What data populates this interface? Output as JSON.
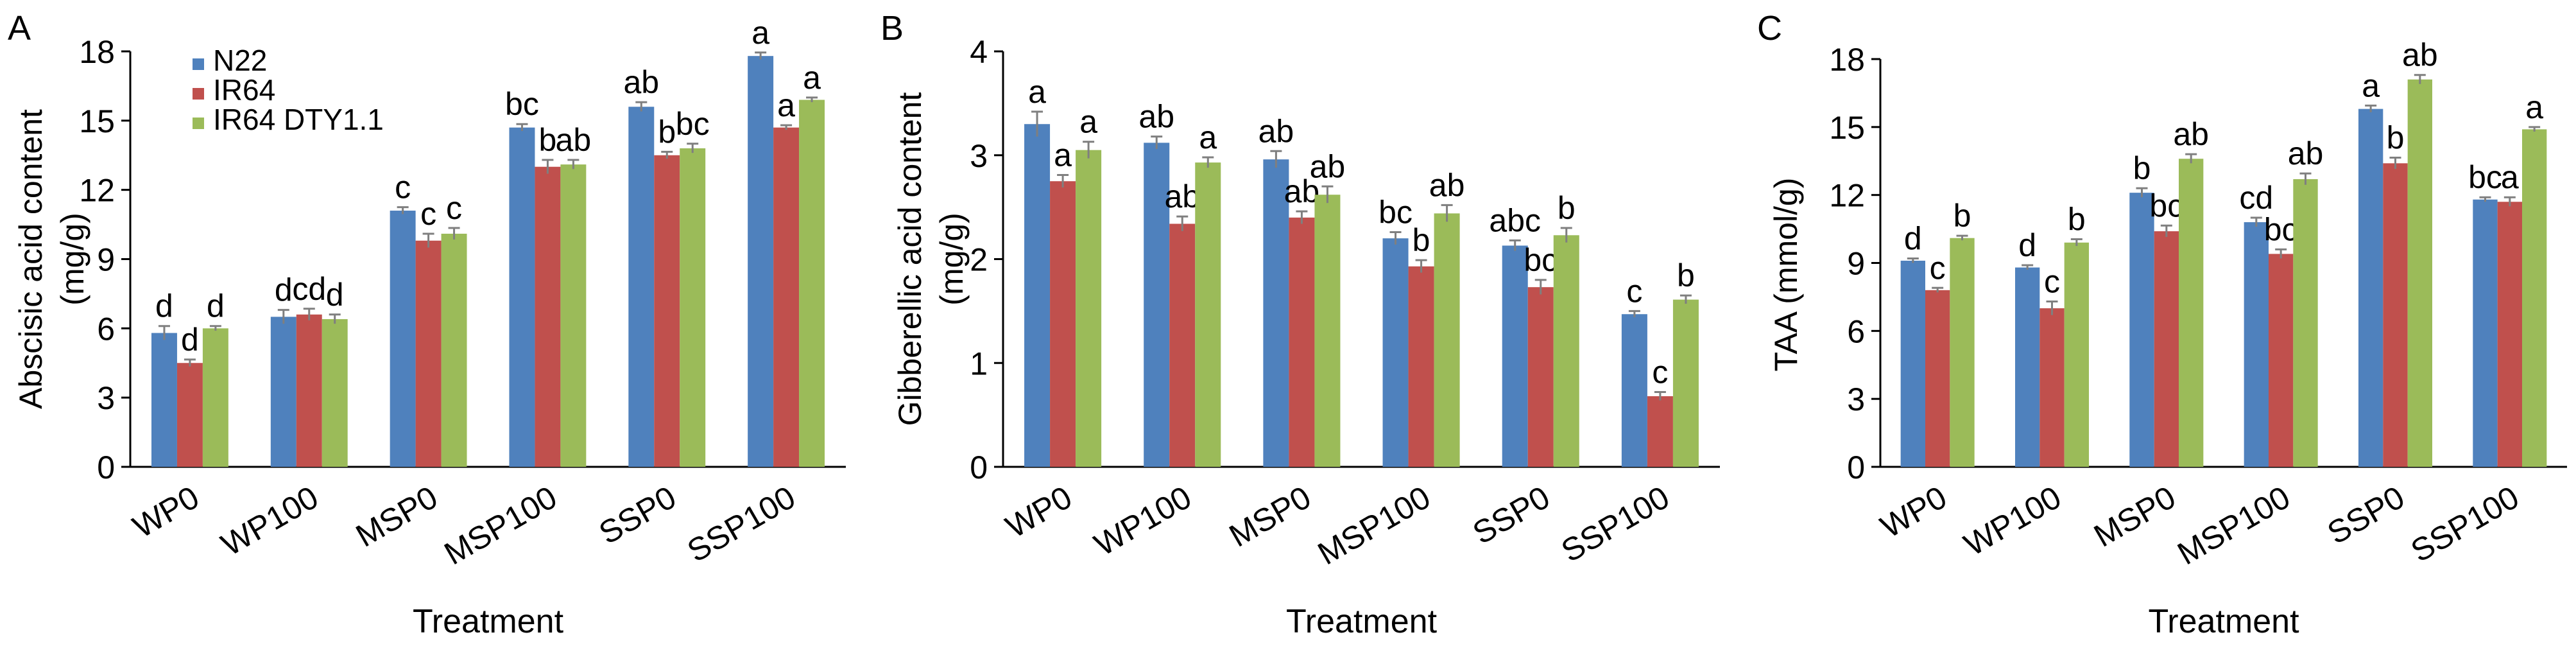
{
  "colors": {
    "N22": "#4f81bd",
    "IR64": "#c0504d",
    "IR64 DTY1.1": "#9bbb59"
  },
  "chart_data": [
    {
      "panel": "A",
      "type": "bar",
      "xlabel": "Treatment",
      "ylabel": "Abscisic acid content (mg/g)",
      "ylim": [
        0,
        18
      ],
      "yticks": [
        0,
        3,
        6,
        9,
        12,
        15,
        18
      ],
      "categories": [
        "WP0",
        "WP100",
        "MSP0",
        "MSP100",
        "SSP0",
        "SSP100"
      ],
      "legend_position": "top-left",
      "series": [
        {
          "name": "N22",
          "values": [
            5.8,
            6.5,
            11.1,
            14.7,
            15.6,
            17.8
          ],
          "errors": [
            0.3,
            0.3,
            0.15,
            0.15,
            0.2,
            0.15
          ],
          "letters": [
            "d",
            "d",
            "c",
            "bc",
            "ab",
            "a"
          ]
        },
        {
          "name": "IR64",
          "values": [
            4.5,
            6.6,
            9.8,
            13.0,
            13.5,
            14.7
          ],
          "errors": [
            0.15,
            0.25,
            0.3,
            0.3,
            0.15,
            0.1
          ],
          "letters": [
            "d",
            "cd",
            "c",
            "b",
            "b",
            "a"
          ]
        },
        {
          "name": "IR64 DTY1.1",
          "values": [
            6.0,
            6.4,
            10.1,
            13.1,
            13.8,
            15.9
          ],
          "errors": [
            0.1,
            0.2,
            0.25,
            0.2,
            0.2,
            0.1
          ],
          "letters": [
            "d",
            "d",
            "c",
            "ab",
            "bc",
            "a"
          ]
        }
      ]
    },
    {
      "panel": "B",
      "type": "bar",
      "xlabel": "Treatment",
      "ylabel": "Gibberellic acid content (mg/g)",
      "ylim": [
        0,
        4
      ],
      "yticks": [
        0,
        1,
        2,
        3,
        4
      ],
      "categories": [
        "WP0",
        "WP100",
        "MSP0",
        "MSP100",
        "SSP0",
        "SSP100"
      ],
      "series": [
        {
          "name": "N22",
          "values": [
            3.3,
            3.12,
            2.96,
            2.2,
            2.13,
            1.47
          ],
          "errors": [
            0.12,
            0.06,
            0.08,
            0.06,
            0.05,
            0.03
          ],
          "letters": [
            "a",
            "ab",
            "ab",
            "bc",
            "abc",
            "c"
          ]
        },
        {
          "name": "IR64",
          "values": [
            2.75,
            2.34,
            2.4,
            1.93,
            1.73,
            0.68
          ],
          "errors": [
            0.06,
            0.07,
            0.06,
            0.06,
            0.07,
            0.04
          ],
          "letters": [
            "a",
            "ab",
            "ab",
            "b",
            "bc",
            "c"
          ]
        },
        {
          "name": "IR64 DTY1.1",
          "values": [
            3.05,
            2.93,
            2.62,
            2.44,
            2.23,
            1.61
          ],
          "errors": [
            0.08,
            0.05,
            0.08,
            0.08,
            0.07,
            0.04
          ],
          "letters": [
            "a",
            "a",
            "ab",
            "ab",
            "b",
            "b"
          ]
        }
      ]
    },
    {
      "panel": "C",
      "type": "bar",
      "xlabel": "Treatment",
      "ylabel": "TAA (mmol/g)",
      "ylim": [
        0,
        18
      ],
      "yticks": [
        0,
        3,
        6,
        9,
        12,
        15,
        18
      ],
      "categories": [
        "WP0",
        "WP100",
        "MSP0",
        "MSP100",
        "SSP0",
        "SSP100"
      ],
      "series": [
        {
          "name": "N22",
          "values": [
            9.1,
            8.8,
            12.1,
            10.8,
            15.8,
            11.8
          ],
          "errors": [
            0.1,
            0.1,
            0.2,
            0.2,
            0.15,
            0.1
          ],
          "letters": [
            "d",
            "d",
            "b",
            "cd",
            "a",
            "bc"
          ]
        },
        {
          "name": "IR64",
          "values": [
            7.8,
            7.0,
            10.4,
            9.4,
            13.4,
            11.7
          ],
          "errors": [
            0.1,
            0.3,
            0.25,
            0.2,
            0.25,
            0.2
          ],
          "letters": [
            "c",
            "c",
            "bc",
            "bc",
            "b",
            "a"
          ]
        },
        {
          "name": "IR64 DTY1.1",
          "values": [
            10.1,
            9.9,
            13.6,
            12.7,
            17.1,
            14.9
          ],
          "errors": [
            0.1,
            0.15,
            0.2,
            0.25,
            0.2,
            0.1
          ],
          "letters": [
            "b",
            "b",
            "ab",
            "ab",
            "ab",
            "a"
          ]
        }
      ]
    }
  ]
}
